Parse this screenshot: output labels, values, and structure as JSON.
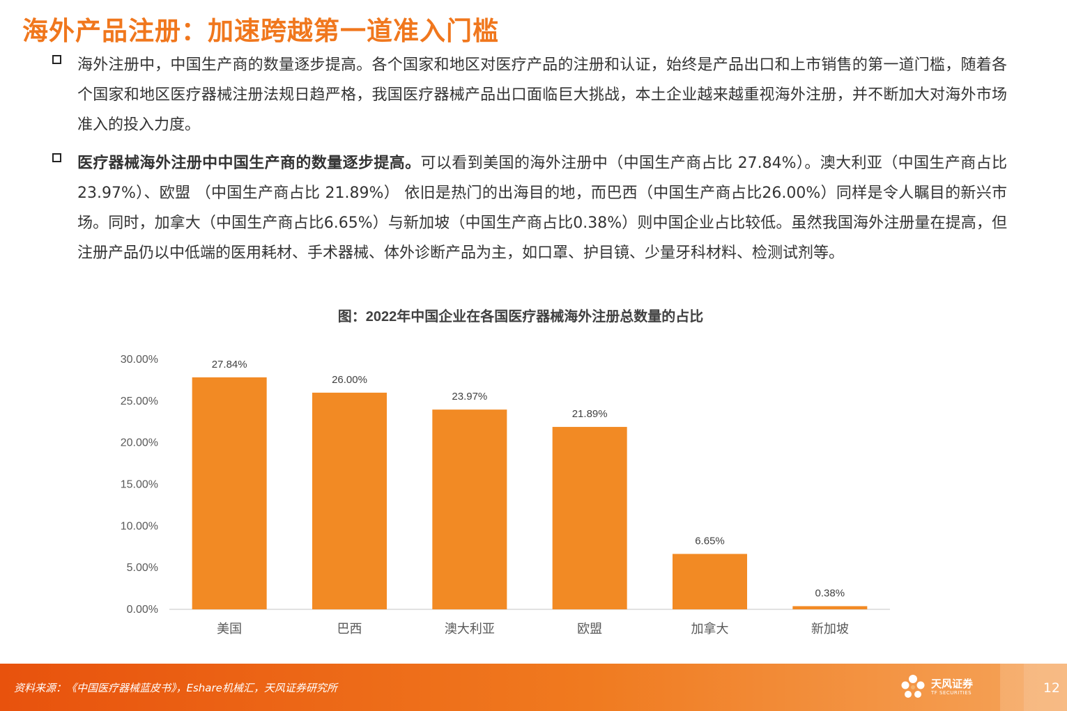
{
  "title": "海外产品注册：加速跨越第一道准入门槛",
  "bullets": [
    {
      "bold": "",
      "text": "海外注册中，中国生产商的数量逐步提高。各个国家和地区对医疗产品的注册和认证，始终是产品出口和上市销售的第一道门槛，随着各个国家和地区医疗器械注册法规日趋严格，我国医疗器械产品出口面临巨大挑战，本土企业越来越重视海外注册，并不断加大对海外市场准入的投入力度。"
    },
    {
      "bold": "医疗器械海外注册中中国生产商的数量逐步提高。",
      "text": "可以看到美国的海外注册中（中国生产商占比 27.84%）。澳大利亚（中国生产商占比 23.97%）、欧盟 （中国生产商占比 21.89%） 依旧是热门的出海目的地，而巴西（中国生产商占比26.00%）同样是令人瞩目的新兴市场。同时，加拿大（中国生产商占比6.65%）与新加坡（中国生产商占比0.38%）则中国企业占比较低。虽然我国海外注册量在提高，但注册产品仍以中低端的医用耗材、手术器械、体外诊断产品为主，如口罩、护目镜、少量牙科材料、检测试剂等。"
    }
  ],
  "chart_data": {
    "type": "bar",
    "title": "图：2022年中国企业在各国医疗器械海外注册总数量的占比",
    "categories": [
      "美国",
      "巴西",
      "澳大利亚",
      "欧盟",
      "加拿大",
      "新加坡"
    ],
    "values": [
      27.84,
      26.0,
      23.97,
      21.89,
      6.65,
      0.38
    ],
    "data_labels": [
      "27.84%",
      "26.00%",
      "23.97%",
      "21.89%",
      "6.65%",
      "0.38%"
    ],
    "yticks": [
      "0.00%",
      "5.00%",
      "10.00%",
      "15.00%",
      "20.00%",
      "25.00%",
      "30.00%"
    ],
    "ylim": [
      0,
      30
    ],
    "xlabel": "",
    "ylabel": "",
    "grid": false,
    "bar_color": "#f28a24"
  },
  "footer": {
    "source": "资料来源：《中国医疗器械蓝皮书》，Eshare机械汇，天风证券研究所",
    "logo_cn": "天风证券",
    "logo_en": "TF SECURITIES",
    "page": "12"
  },
  "colors": {
    "accent": "#f0771d",
    "bar": "#f28a24",
    "footer": "#e8520d"
  }
}
